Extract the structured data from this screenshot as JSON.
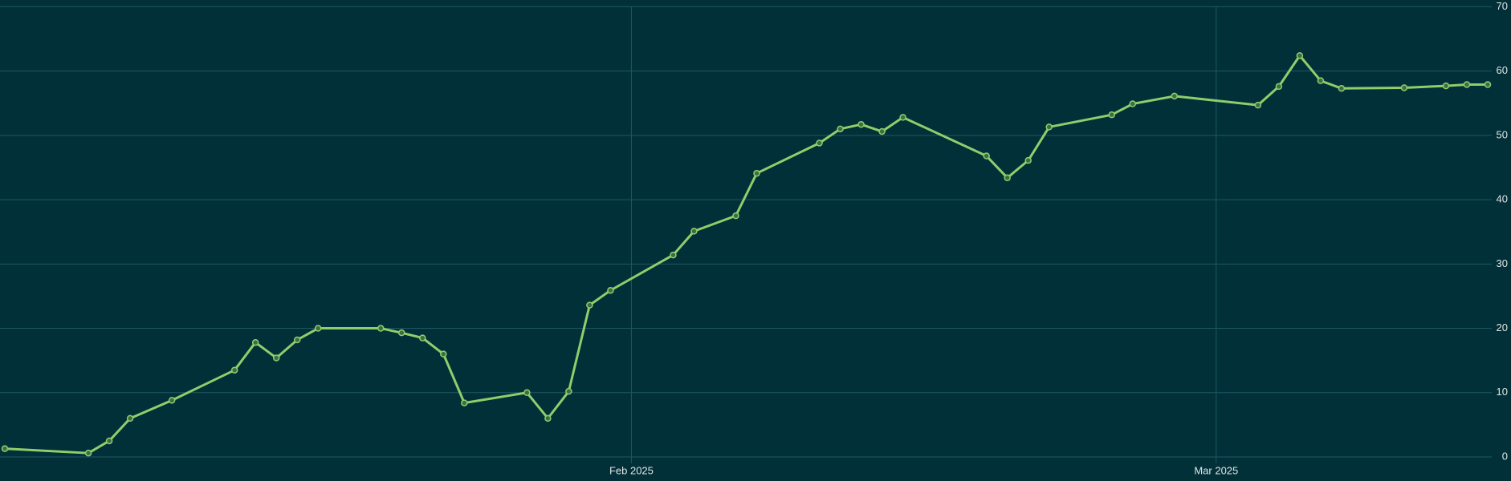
{
  "chart_data": {
    "type": "line",
    "x": [
      2,
      6,
      7,
      8,
      10,
      13,
      14,
      15,
      16,
      17,
      20,
      21,
      22,
      23,
      24,
      27,
      28,
      29,
      30,
      31,
      34,
      35,
      37,
      38,
      41,
      42,
      43,
      44,
      45,
      49,
      50,
      51,
      52,
      55,
      56,
      58,
      62,
      63,
      64,
      65,
      66,
      69,
      71,
      72,
      73
    ],
    "values": [
      1.3,
      0.6,
      2.5,
      6.0,
      8.8,
      13.5,
      17.8,
      15.4,
      18.2,
      20.0,
      20.0,
      19.3,
      18.5,
      16.0,
      8.4,
      10.0,
      6.0,
      10.2,
      23.6,
      25.9,
      31.4,
      35.1,
      37.5,
      44.1,
      48.8,
      51.0,
      51.7,
      50.6,
      52.8,
      46.8,
      43.4,
      46.1,
      51.3,
      53.2,
      54.9,
      56.1,
      54.7,
      57.6,
      62.4,
      58.5,
      57.3,
      57.4,
      57.7,
      57.9,
      57.9
    ],
    "color": "#8fce6a",
    "xlim": [
      2,
      73
    ],
    "xticks": [
      {
        "value": 32,
        "label": "Feb 2025"
      },
      {
        "value": 60,
        "label": "Mar 2025"
      }
    ],
    "ylim": [
      0,
      70
    ],
    "yticks": [
      0,
      10,
      20,
      30,
      40,
      50,
      60,
      70
    ],
    "grid": true
  }
}
